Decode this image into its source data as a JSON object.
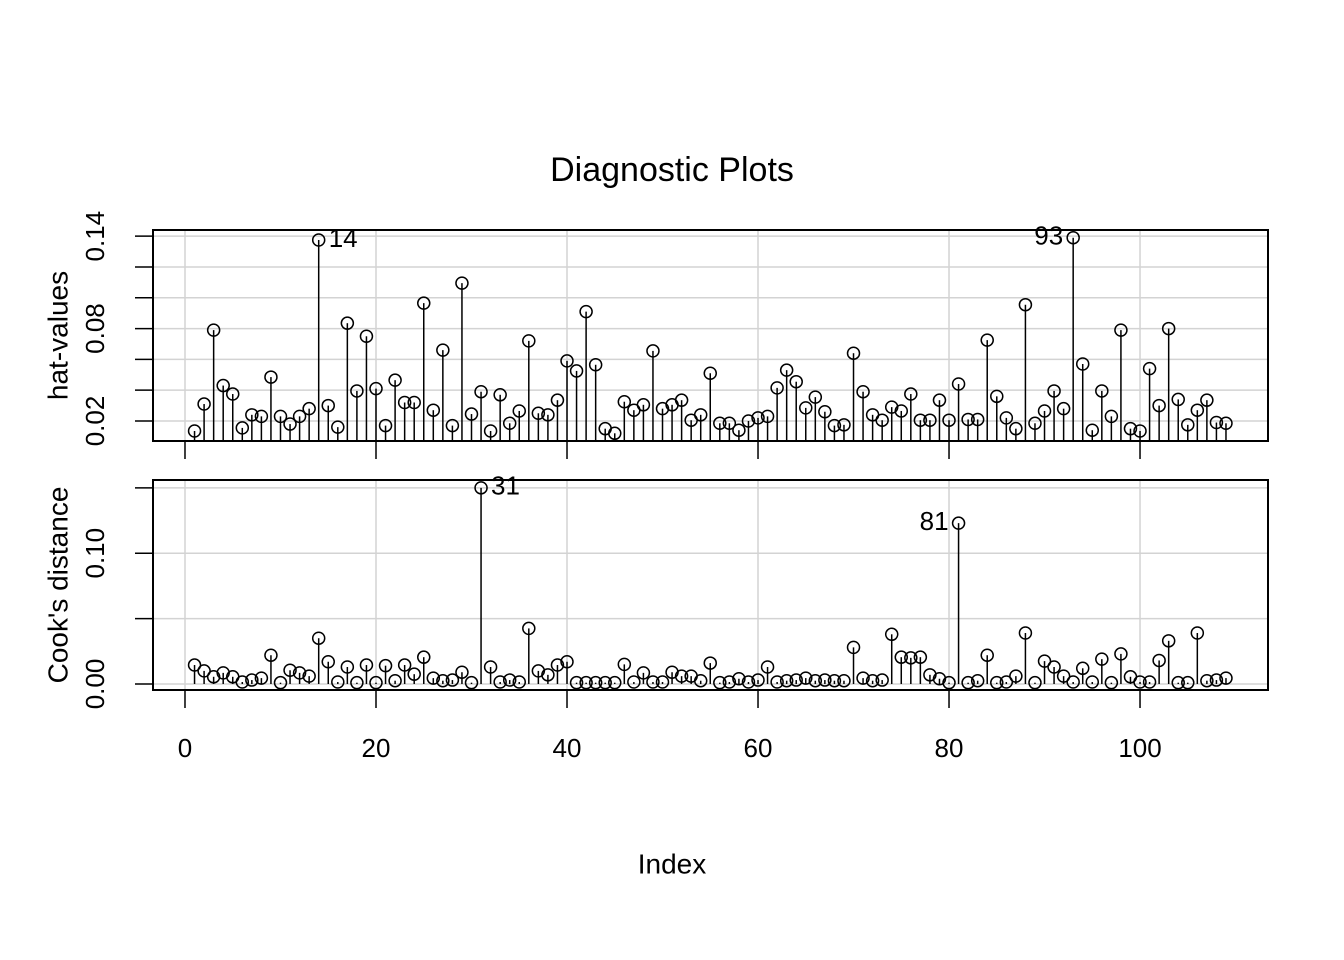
{
  "chart_data": {
    "type": "stem",
    "title": "Diagnostic Plots",
    "xlabel": "Index",
    "x": [
      1,
      2,
      3,
      4,
      5,
      6,
      7,
      8,
      9,
      10,
      11,
      12,
      13,
      14,
      15,
      16,
      17,
      18,
      19,
      20,
      21,
      22,
      23,
      24,
      25,
      26,
      27,
      28,
      29,
      30,
      31,
      32,
      33,
      34,
      35,
      36,
      37,
      38,
      39,
      40,
      41,
      42,
      43,
      44,
      45,
      46,
      47,
      48,
      49,
      50,
      51,
      52,
      53,
      54,
      55,
      56,
      57,
      58,
      59,
      60,
      61,
      62,
      63,
      64,
      65,
      66,
      67,
      68,
      69,
      70,
      71,
      72,
      73,
      74,
      75,
      76,
      77,
      78,
      79,
      80,
      81,
      82,
      83,
      84,
      85,
      86,
      87,
      88,
      89,
      90,
      91,
      92,
      93,
      94,
      95,
      96,
      97,
      98,
      99,
      100,
      101,
      102,
      103,
      104,
      105,
      106,
      107,
      108,
      109
    ],
    "xlim": [
      -3.35,
      113.4
    ],
    "xticks": [
      0,
      20,
      40,
      60,
      80,
      100
    ],
    "grid": true,
    "panels": [
      {
        "ylabel": "hat-values",
        "ylim": [
          0.007,
          0.144
        ],
        "yticks": [
          0.02,
          0.08,
          0.14
        ],
        "ygrid": [
          0.02,
          0.04,
          0.06,
          0.08,
          0.1,
          0.12,
          0.14
        ],
        "values": [
          0.0135,
          0.031,
          0.079,
          0.043,
          0.0375,
          0.0155,
          0.024,
          0.023,
          0.0485,
          0.023,
          0.018,
          0.023,
          0.028,
          0.1375,
          0.03,
          0.016,
          0.0835,
          0.0395,
          0.075,
          0.041,
          0.017,
          0.0465,
          0.032,
          0.032,
          0.0965,
          0.027,
          0.066,
          0.017,
          0.1095,
          0.0245,
          0.039,
          0.0135,
          0.037,
          0.0185,
          0.0265,
          0.072,
          0.025,
          0.024,
          0.0335,
          0.059,
          0.0525,
          0.091,
          0.0565,
          0.015,
          0.012,
          0.0325,
          0.027,
          0.0305,
          0.0655,
          0.028,
          0.0305,
          0.0335,
          0.0205,
          0.024,
          0.051,
          0.0185,
          0.0185,
          0.014,
          0.02,
          0.022,
          0.023,
          0.0415,
          0.053,
          0.0455,
          0.0285,
          0.0355,
          0.026,
          0.017,
          0.0175,
          0.064,
          0.039,
          0.024,
          0.0205,
          0.029,
          0.0265,
          0.0375,
          0.0205,
          0.0205,
          0.0335,
          0.0205,
          0.044,
          0.021,
          0.021,
          0.0725,
          0.036,
          0.022,
          0.015,
          0.0955,
          0.0185,
          0.0265,
          0.0395,
          0.028,
          0.139,
          0.057,
          0.014,
          0.0395,
          0.023,
          0.079,
          0.015,
          0.0135,
          0.054,
          0.03,
          0.08,
          0.034,
          0.0175,
          0.027,
          0.0335,
          0.019,
          0.0185
        ],
        "annotations": [
          {
            "text": "14",
            "x": 14,
            "side": "right"
          },
          {
            "text": "93",
            "x": 93,
            "side": "left"
          }
        ]
      },
      {
        "ylabel": "Cook's distance",
        "ylim": [
          -0.0046,
          0.156
        ],
        "yticks": [
          {
            "value": 0,
            "label": "0.00"
          },
          {
            "value": 0.1,
            "label": "0.10"
          }
        ],
        "ygrid": [
          0,
          0.05,
          0.1,
          0.15
        ],
        "values": [
          0.0145,
          0.01,
          0.0055,
          0.0085,
          0.0055,
          0.0015,
          0.003,
          0.0045,
          0.022,
          0.001,
          0.0105,
          0.0085,
          0.006,
          0.035,
          0.017,
          0.0015,
          0.013,
          0.001,
          0.0145,
          0.001,
          0.014,
          0.0025,
          0.0145,
          0.0075,
          0.0205,
          0.0045,
          0.0025,
          0.003,
          0.009,
          0.001,
          0.15,
          0.013,
          0.0015,
          0.003,
          0.0015,
          0.0425,
          0.01,
          0.007,
          0.0145,
          0.017,
          0.001,
          0.001,
          0.001,
          0.001,
          0.001,
          0.015,
          0.0015,
          0.0085,
          0.0015,
          0.0015,
          0.009,
          0.006,
          0.006,
          0.0025,
          0.016,
          0.001,
          0.0015,
          0.004,
          0.0015,
          0.003,
          0.013,
          0.0015,
          0.0025,
          0.003,
          0.0045,
          0.0025,
          0.003,
          0.0025,
          0.0025,
          0.028,
          0.0045,
          0.0025,
          0.003,
          0.038,
          0.0205,
          0.02,
          0.0205,
          0.007,
          0.004,
          0.001,
          0.123,
          0.001,
          0.0025,
          0.022,
          0.001,
          0.0015,
          0.006,
          0.039,
          0.001,
          0.0175,
          0.013,
          0.006,
          0.0015,
          0.012,
          0.0015,
          0.019,
          0.001,
          0.023,
          0.0055,
          0.0015,
          0.0015,
          0.018,
          0.033,
          0.001,
          0.001,
          0.039,
          0.0025,
          0.003,
          0.0045
        ],
        "annotations": [
          {
            "text": "31",
            "x": 31,
            "side": "right"
          },
          {
            "text": "81",
            "x": 81,
            "side": "left"
          }
        ]
      }
    ]
  }
}
